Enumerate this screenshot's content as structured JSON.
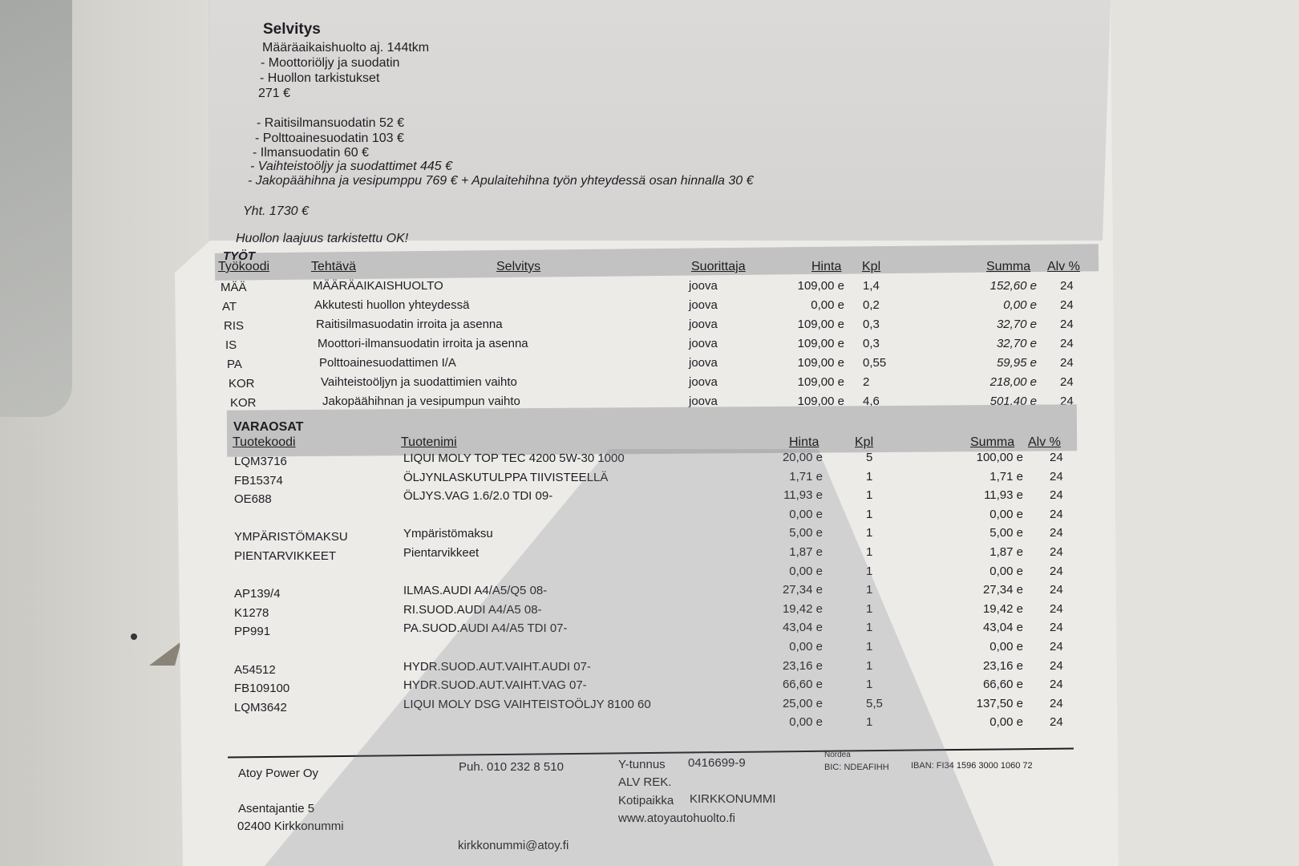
{
  "selvitys": {
    "title": "Selvitys",
    "lines": [
      "Määräaikaishuolto aj. 144tkm",
      "- Moottoriöljy ja suodatin",
      "- Huollon tarkistukset",
      "271 €"
    ],
    "extras": [
      "- Raitisilmansuodatin 52 €",
      "- Polttoainesuodatin 103 €",
      "- Ilmansuodatin 60 €",
      "- Vaihteistoöljy ja suodattimet 445 €",
      "- Jakopäähihna ja vesipumppu 769 €  + Apulaitehihna työn yhteydessä osan hinnalla 30 €"
    ],
    "total": "Yht. 1730 €",
    "note": "Huollon laajuus tarkistettu OK!"
  },
  "tyot": {
    "section": "TYÖT",
    "headers": {
      "code": "Työkoodi",
      "task": "Tehtävä",
      "desc": "Selvitys",
      "performer": "Suorittaja",
      "price": "Hinta",
      "qty": "Kpl",
      "sum": "Summa",
      "vat": "Alv %"
    },
    "rows": [
      {
        "code": "MÄÄ",
        "task": "MÄÄRÄAIKAISHUOLTO",
        "performer": "joova",
        "price": "109,00 e",
        "qty": "1,4",
        "sum": "152,60 e",
        "vat": "24"
      },
      {
        "code": "AT",
        "task": "Akkutesti huollon yhteydessä",
        "performer": "joova",
        "price": "0,00 e",
        "qty": "0,2",
        "sum": "0,00 e",
        "vat": "24"
      },
      {
        "code": "RIS",
        "task": "Raitisilmasuodatin irroita ja asenna",
        "performer": "joova",
        "price": "109,00 e",
        "qty": "0,3",
        "sum": "32,70 e",
        "vat": "24"
      },
      {
        "code": "IS",
        "task": "Moottori-ilmansuodatin irroita ja asenna",
        "performer": "joova",
        "price": "109,00 e",
        "qty": "0,3",
        "sum": "32,70 e",
        "vat": "24"
      },
      {
        "code": "PA",
        "task": "Polttoainesuodattimen I/A",
        "performer": "joova",
        "price": "109,00 e",
        "qty": "0,55",
        "sum": "59,95 e",
        "vat": "24"
      },
      {
        "code": "KOR",
        "task": "Vaihteistoöljyn ja suodattimien vaihto",
        "performer": "joova",
        "price": "109,00 e",
        "qty": "2",
        "sum": "218,00 e",
        "vat": "24"
      },
      {
        "code": "KOR",
        "task": "Jakopäähihnan ja vesipumpun vaihto",
        "performer": "joova",
        "price": "109,00 e",
        "qty": "4,6",
        "sum": "501,40 e",
        "vat": "24"
      }
    ]
  },
  "varaosat": {
    "section": "VARAOSAT",
    "headers": {
      "code": "Tuotekoodi",
      "name": "Tuotenimi",
      "price": "Hinta",
      "qty": "Kpl",
      "sum": "Summa",
      "vat": "Alv %"
    },
    "rows": [
      {
        "code": "LQM3716",
        "name": "LIQUI MOLY TOP TEC 4200 5W-30 1000",
        "price": "20,00 e",
        "qty": "5",
        "sum": "100,00 e",
        "vat": "24"
      },
      {
        "code": "FB15374",
        "name": "ÖLJYNLASKUTULPPA TIIVISTEELLÄ",
        "price": "1,71 e",
        "qty": "1",
        "sum": "1,71 e",
        "vat": "24"
      },
      {
        "code": "OE688",
        "name": "ÖLJYS.VAG 1.6/2.0 TDI 09-",
        "price": "11,93 e",
        "qty": "1",
        "sum": "11,93 e",
        "vat": "24"
      },
      {
        "code": "",
        "name": "",
        "price": "0,00 e",
        "qty": "1",
        "sum": "0,00 e",
        "vat": "24"
      },
      {
        "code": "YMPÄRISTÖMAKSU",
        "name": "Ympäristömaksu",
        "price": "5,00 e",
        "qty": "1",
        "sum": "5,00 e",
        "vat": "24"
      },
      {
        "code": "PIENTARVIKKEET",
        "name": "Pientarvikkeet",
        "price": "1,87 e",
        "qty": "1",
        "sum": "1,87 e",
        "vat": "24"
      },
      {
        "code": "",
        "name": "",
        "price": "0,00 e",
        "qty": "1",
        "sum": "0,00 e",
        "vat": "24"
      },
      {
        "code": "AP139/4",
        "name": "ILMAS.AUDI A4/A5/Q5 08-",
        "price": "27,34 e",
        "qty": "1",
        "sum": "27,34 e",
        "vat": "24"
      },
      {
        "code": "K1278",
        "name": "RI.SUOD.AUDI A4/A5 08-",
        "price": "19,42 e",
        "qty": "1",
        "sum": "19,42 e",
        "vat": "24"
      },
      {
        "code": "PP991",
        "name": "PA.SUOD.AUDI A4/A5 TDI 07-",
        "price": "43,04 e",
        "qty": "1",
        "sum": "43,04 e",
        "vat": "24"
      },
      {
        "code": "",
        "name": "",
        "price": "0,00 e",
        "qty": "1",
        "sum": "0,00 e",
        "vat": "24"
      },
      {
        "code": "A54512",
        "name": "HYDR.SUOD.AUT.VAIHT.AUDI 07-",
        "price": "23,16 e",
        "qty": "1",
        "sum": "23,16 e",
        "vat": "24"
      },
      {
        "code": "FB109100",
        "name": "HYDR.SUOD.AUT.VAIHT.VAG 07-",
        "price": "66,60 e",
        "qty": "1",
        "sum": "66,60 e",
        "vat": "24"
      },
      {
        "code": "LQM3642",
        "name": "LIQUI MOLY DSG VAIHTEISTOÖLJY 8100 60",
        "price": "25,00 e",
        "qty": "5,5",
        "sum": "137,50 e",
        "vat": "24"
      },
      {
        "code": "",
        "name": "",
        "price": "0,00 e",
        "qty": "1",
        "sum": "0,00 e",
        "vat": "24"
      }
    ]
  },
  "footer": {
    "company": "Atoy Power Oy",
    "street": "Asentajantie 5",
    "postal": "02400 Kirkkonummi",
    "phone": "Puh. 010  232 8 510",
    "email": "kirkkonummi@atoy.fi",
    "ytunnus_label": "Y-tunnus",
    "ytunnus": "0416699-9",
    "alv": "ALV REK.",
    "kotipaikka_label": "Kotipaikka",
    "kotipaikka": "KIRKKONUMMI",
    "web": "www.atoyautohuolto.fi",
    "bank": "Nordea",
    "bic": "BIC: NDEAFIHH",
    "iban": "IBAN: FI34 1596 3000 1060 72"
  }
}
